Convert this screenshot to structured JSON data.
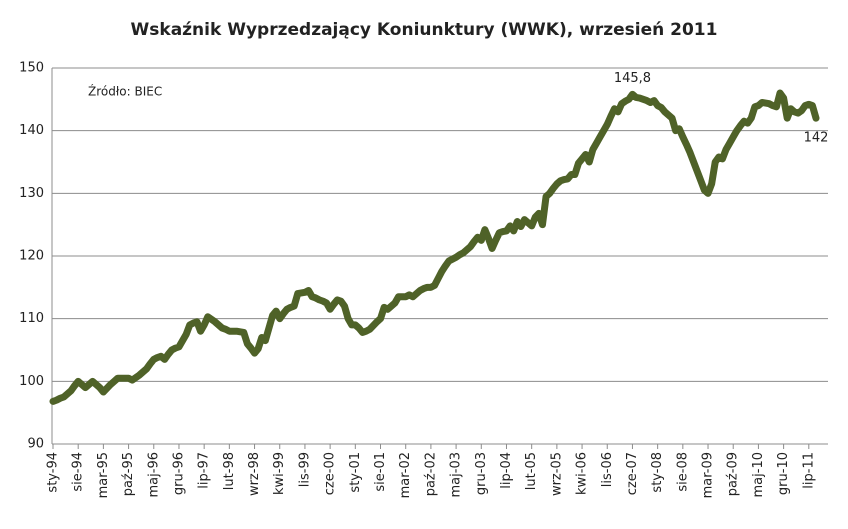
{
  "chart_data": {
    "type": "line",
    "title": "Wskaźnik Wyprzedzający Koniunktury (WWK), wrzesień 2011",
    "annotation": "Źródło: BIEC",
    "categories": [
      "sty-94",
      null,
      null,
      null,
      null,
      null,
      null,
      "sie-94",
      null,
      null,
      null,
      null,
      null,
      null,
      "mar-95",
      null,
      null,
      null,
      null,
      null,
      null,
      "paź-95",
      null,
      null,
      null,
      null,
      null,
      null,
      "maj-96",
      null,
      null,
      null,
      null,
      null,
      null,
      "gru-96",
      null,
      null,
      null,
      null,
      null,
      null,
      "lip-97",
      null,
      null,
      null,
      null,
      null,
      null,
      "lut-98",
      null,
      null,
      null,
      null,
      null,
      null,
      "wrz-98",
      null,
      null,
      null,
      null,
      null,
      null,
      "kwi-99",
      null,
      null,
      null,
      null,
      null,
      null,
      "lis-99",
      null,
      null,
      null,
      null,
      null,
      null,
      "cze-00",
      null,
      null,
      null,
      null,
      null,
      null,
      "sty-01",
      null,
      null,
      null,
      null,
      null,
      null,
      "sie-01",
      null,
      null,
      null,
      null,
      null,
      null,
      "mar-02",
      null,
      null,
      null,
      null,
      null,
      null,
      "paź-02",
      null,
      null,
      null,
      null,
      null,
      null,
      "maj-03",
      null,
      null,
      null,
      null,
      null,
      null,
      "gru-03",
      null,
      null,
      null,
      null,
      null,
      null,
      "lip-04",
      null,
      null,
      null,
      null,
      null,
      null,
      "lut-05",
      null,
      null,
      null,
      null,
      null,
      null,
      "wrz-05",
      null,
      null,
      null,
      null,
      null,
      null,
      "kwi-06",
      null,
      null,
      null,
      null,
      null,
      null,
      "lis-06",
      null,
      null,
      null,
      null,
      null,
      null,
      "cze-07",
      null,
      null,
      null,
      null,
      null,
      null,
      "sty-08",
      null,
      null,
      null,
      null,
      null,
      null,
      "sie-08",
      null,
      null,
      null,
      null,
      null,
      null,
      "mar-09",
      null,
      null,
      null,
      null,
      null,
      null,
      "paź-09",
      null,
      null,
      null,
      null,
      null,
      null,
      "maj-10",
      null,
      null,
      null,
      null,
      null,
      null,
      "gru-10",
      null,
      null,
      null,
      null,
      null,
      null,
      "lip-11",
      null,
      null
    ],
    "series": [
      {
        "color": "#4f6228",
        "values": [
          96.8,
          97.0,
          97.3,
          97.5,
          98.0,
          98.5,
          99.3,
          100,
          99.5,
          99,
          99.5,
          100,
          99.5,
          99,
          98.3,
          98.9,
          99.5,
          100,
          100.5,
          100.5,
          100.5,
          100.5,
          100.2,
          100.6,
          101,
          101.5,
          102,
          102.8,
          103.5,
          103.8,
          104,
          103.5,
          104.3,
          105,
          105.3,
          105.5,
          106.5,
          107.5,
          109,
          109.3,
          109.5,
          108,
          109,
          110.3,
          109.9,
          109.5,
          109,
          108.5,
          108.3,
          108,
          108,
          108,
          107.9,
          107.8,
          106,
          105.3,
          104.5,
          105.2,
          107,
          106.5,
          108.5,
          110.5,
          111.2,
          110,
          110.8,
          111.5,
          111.8,
          112,
          114,
          114.1,
          114.2,
          114.5,
          113.5,
          113.3,
          113,
          112.8,
          112.5,
          111.5,
          112.3,
          113,
          112.8,
          112,
          110,
          109,
          109,
          108.5,
          107.8,
          108,
          108.3,
          108.9,
          109.5,
          110,
          111.8,
          111.5,
          112,
          112.5,
          113.5,
          113.5,
          113.5,
          113.8,
          113.5,
          114,
          114.5,
          114.8,
          115,
          115,
          115.3,
          116.4,
          117.5,
          118.4,
          119.2,
          119.5,
          119.8,
          120.2,
          120.5,
          121,
          121.5,
          122.3,
          123,
          122.5,
          124.2,
          122.8,
          121.2,
          122.5,
          123.7,
          123.9,
          124,
          124.8,
          124,
          125.5,
          124.7,
          125.8,
          125.3,
          124.8,
          126.2,
          126.8,
          125,
          129.5,
          130,
          130.8,
          131.5,
          132,
          132.2,
          132.3,
          133,
          133,
          134.8,
          135.5,
          136.2,
          135,
          137,
          138,
          139,
          140,
          141,
          142.3,
          143.5,
          143,
          144.3,
          144.7,
          145,
          145.8,
          145.3,
          145.2,
          145,
          144.8,
          144.5,
          144.8,
          144,
          143.7,
          143,
          142.5,
          142,
          140,
          140.3,
          139,
          137.8,
          136.5,
          135,
          133.5,
          132,
          130.5,
          130,
          131.5,
          135,
          135.8,
          135.5,
          137,
          138,
          139,
          140,
          140.8,
          141.5,
          141.2,
          142,
          143.8,
          144,
          144.5,
          144.4,
          144.3,
          144,
          143.8,
          146,
          145.2,
          142,
          143.5,
          143,
          142.8,
          143.2,
          144,
          144.2,
          144,
          142
        ],
        "value_labels": [
          null,
          null,
          null,
          null,
          null,
          null,
          null,
          null,
          null,
          null,
          null,
          null,
          null,
          null,
          null,
          null,
          null,
          null,
          null,
          null,
          null,
          null,
          null,
          null,
          null,
          null,
          null,
          null,
          null,
          null,
          null,
          null,
          null,
          null,
          null,
          null,
          null,
          null,
          null,
          null,
          null,
          null,
          null,
          null,
          null,
          null,
          null,
          null,
          null,
          null,
          null,
          null,
          null,
          null,
          null,
          null,
          null,
          null,
          null,
          null,
          null,
          null,
          null,
          null,
          null,
          null,
          null,
          null,
          null,
          null,
          null,
          null,
          null,
          null,
          null,
          null,
          null,
          null,
          null,
          null,
          null,
          null,
          null,
          null,
          null,
          null,
          null,
          null,
          null,
          null,
          null,
          null,
          null,
          null,
          null,
          null,
          null,
          null,
          null,
          null,
          null,
          null,
          null,
          null,
          null,
          null,
          null,
          null,
          null,
          null,
          null,
          null,
          null,
          null,
          null,
          null,
          null,
          null,
          null,
          null,
          null,
          null,
          null,
          null,
          null,
          null,
          null,
          null,
          null,
          null,
          null,
          null,
          null,
          null,
          null,
          null,
          null,
          null,
          null,
          null,
          null,
          null,
          null,
          null,
          null,
          null,
          null,
          null,
          null,
          null,
          null,
          null,
          null,
          null,
          null,
          null,
          null,
          null,
          null,
          null,
          null,
          "145,8",
          null,
          null,
          null,
          null,
          null,
          null,
          null,
          null,
          null,
          null,
          null,
          null,
          null,
          null,
          null,
          null,
          null,
          null,
          null,
          null,
          null,
          null,
          null,
          null,
          null,
          null,
          null,
          null,
          null,
          null,
          null,
          null,
          null,
          null,
          null,
          null,
          null,
          null,
          null,
          null,
          null,
          null,
          null,
          null,
          null,
          null,
          null,
          null,
          null,
          null,
          "142"
        ]
      }
    ],
    "ylim": [
      90,
      150
    ],
    "yticks": [
      90,
      100,
      110,
      120,
      130,
      140,
      150
    ],
    "grid": true
  }
}
